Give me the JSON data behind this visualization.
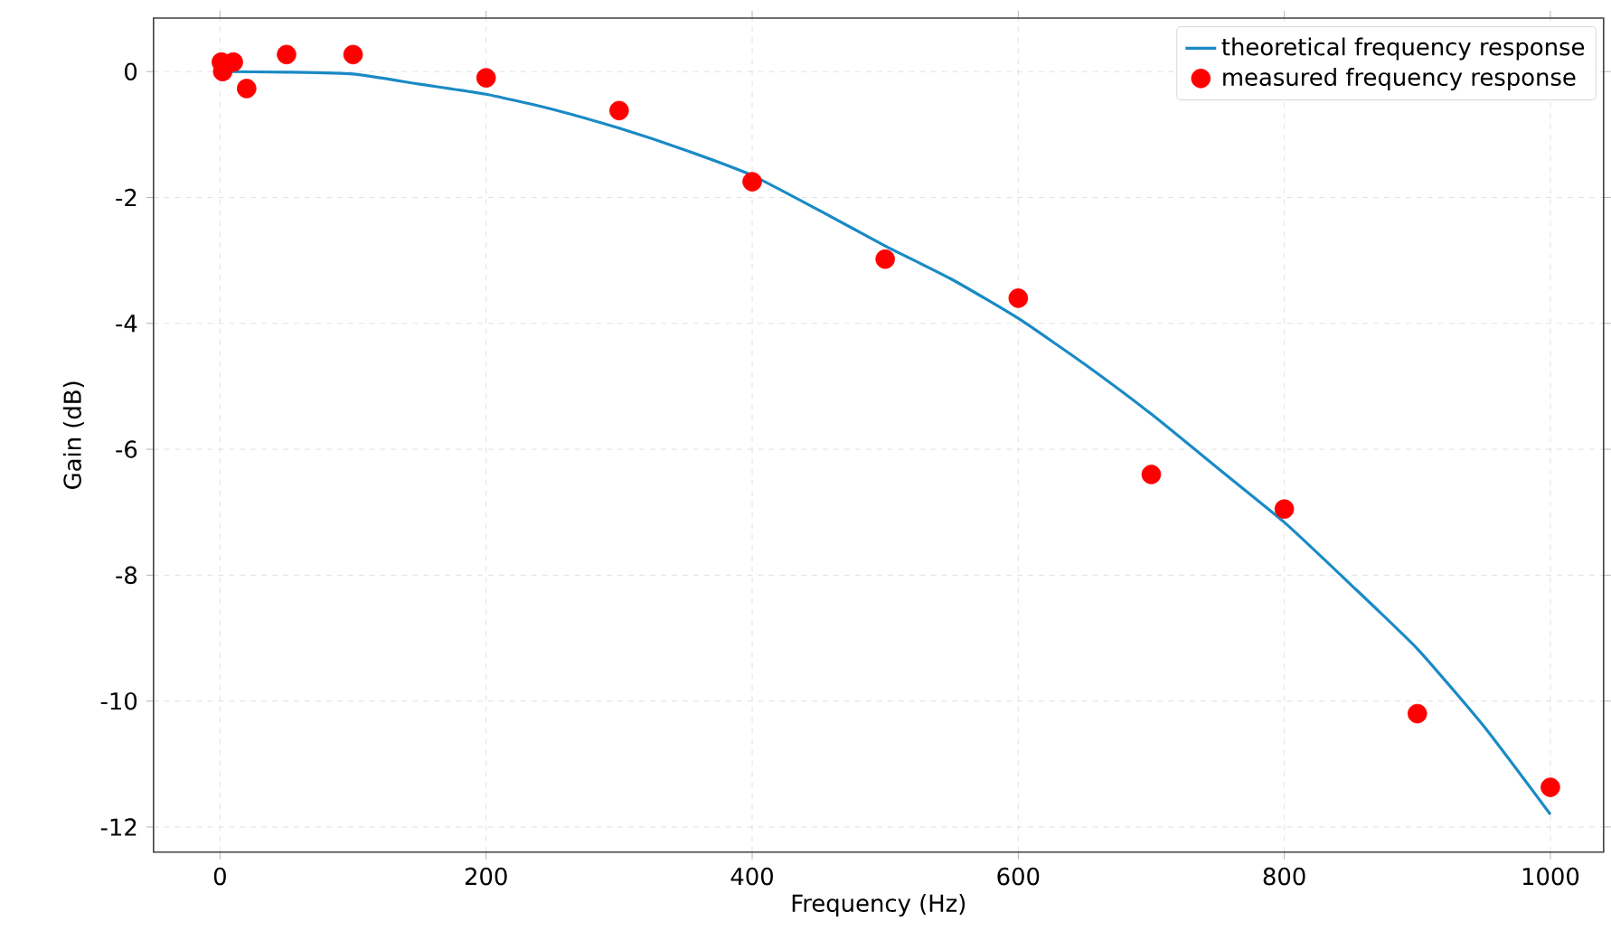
{
  "chart_data": {
    "type": "line",
    "xlabel": "Frequency (Hz)",
    "ylabel": "Gain (dB)",
    "xlim": [
      -50,
      1040
    ],
    "ylim": [
      -12.4,
      0.85
    ],
    "xticks": [
      0,
      200,
      400,
      600,
      800,
      1000
    ],
    "yticks": [
      -12,
      -10,
      -8,
      -6,
      -4,
      -2,
      0
    ],
    "grid": true,
    "legend": "top right",
    "series": [
      {
        "name": "theoretical frequency response",
        "color": "#1a8ac6",
        "x": [
          0,
          50,
          100,
          150,
          200,
          250,
          300,
          350,
          400,
          450,
          500,
          550,
          600,
          650,
          700,
          750,
          800,
          850,
          900,
          950,
          1000
        ],
        "values": [
          0,
          -0.01,
          -0.04,
          -0.2,
          -0.36,
          -0.6,
          -0.9,
          -1.25,
          -1.65,
          -2.2,
          -2.77,
          -3.3,
          -3.92,
          -4.65,
          -5.44,
          -6.3,
          -7.16,
          -8.15,
          -9.17,
          -10.4,
          -11.8
        ]
      },
      {
        "name": "measured frequency response",
        "type": "scatter",
        "color": "#ff0000",
        "x": [
          1,
          2,
          10,
          20,
          50,
          100,
          200,
          300,
          400,
          500,
          600,
          700,
          800,
          900,
          1000
        ],
        "values": [
          0.15,
          0.0,
          0.15,
          -0.27,
          0.27,
          0.27,
          -0.1,
          -0.62,
          -1.75,
          -2.98,
          -3.6,
          -6.4,
          -6.95,
          -10.2,
          -11.37
        ]
      }
    ]
  }
}
